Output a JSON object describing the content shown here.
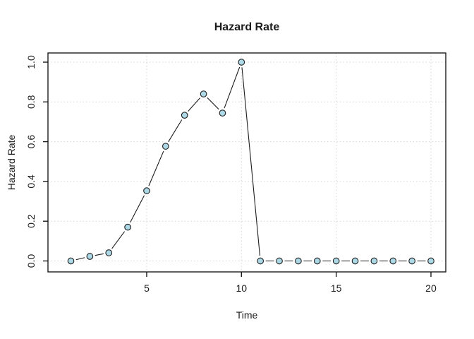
{
  "title": "Hazard Rate",
  "chart_data": {
    "type": "line",
    "title": "Hazard Rate",
    "xlabel": "Time",
    "ylabel": "Hazard Rate",
    "x": [
      1,
      2,
      3,
      4,
      5,
      6,
      7,
      8,
      9,
      10,
      11,
      12,
      13,
      14,
      15,
      16,
      17,
      18,
      19,
      20
    ],
    "y": [
      0.0,
      0.023,
      0.041,
      0.17,
      0.353,
      0.577,
      0.733,
      0.84,
      0.744,
      1.0,
      0.0,
      0.0,
      0.0,
      0.0,
      0.0,
      0.0,
      0.0,
      0.0,
      0.0,
      0.0
    ],
    "xticks": [
      5,
      10,
      15,
      20
    ],
    "xtick_labels": [
      "5",
      "10",
      "15",
      "20"
    ],
    "yticks": [
      0.0,
      0.2,
      0.4,
      0.6,
      0.8,
      1.0
    ],
    "ytick_labels": [
      "0.0",
      "0.2",
      "0.4",
      "0.6",
      "0.8",
      "1.0"
    ],
    "xlim": [
      1,
      20
    ],
    "ylim": [
      0.0,
      1.0
    ],
    "grid": true,
    "grid_style": "dotted",
    "marker": "circle",
    "line_between_points": true,
    "legend": null,
    "colors": {
      "point_fill": "#ADD8E6",
      "point_stroke": "#1c1c1c",
      "line": "#1c1c1c",
      "grid": "#d4d4d4",
      "box": "#1c1c1c",
      "background": "#ffffff"
    }
  }
}
